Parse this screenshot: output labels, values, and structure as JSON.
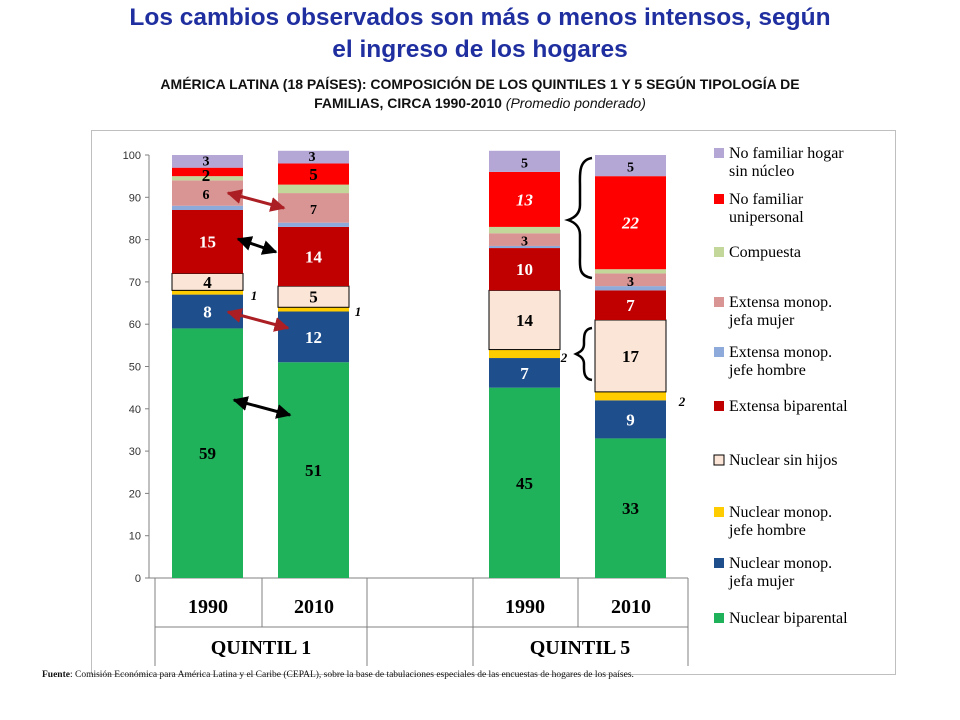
{
  "title_line1": "Los cambios observados son más o menos intensos, según",
  "title_line2": "el ingreso de los hogares",
  "subtitle_line1": "AMÉRICA LATINA (18 PAÍSES): COMPOSICIÓN DE LOS QUINTILES 1 Y 5 SEGÚN TIPOLOGÍA DE",
  "subtitle_line2": "FAMILIAS, CIRCA 1990-2010",
  "subtitle_note": "(Promedio ponderado)",
  "source_label": "Fuente",
  "source_text": ": Comisión Económica para América Latina y el Caribe (CEPAL), sobre la base de tabulaciones especiales de las encuestas de hogares de los países.",
  "colors": {
    "nuclear_biparental": "#1fb25a",
    "nuclear_monop_jefa_mujer": "#1f4e8c",
    "nuclear_monop_jefe_hombre": "#ffcc00",
    "nuclear_sin_hijos": "#fbe5d6",
    "extensa_biparental": "#c00000",
    "extensa_monop_jefe_hombre": "#8eaadb",
    "extensa_monop_jefa_mujer": "#d99594",
    "compuesta": "#c4d79b",
    "no_familiar_unipersonal": "#ff0000",
    "no_familiar_sin_nucleo": "#b4a7d6",
    "arrow": "#ab1f24"
  },
  "chart_data": {
    "type": "bar",
    "stacked": true,
    "ylim": [
      0,
      100
    ],
    "yticks": [
      "0",
      "10",
      "20",
      "30",
      "40",
      "50",
      "60",
      "70",
      "80",
      "90",
      "100"
    ],
    "categories": [
      "1990",
      "2010",
      "1990",
      "2010"
    ],
    "groups": [
      "QUINTIL 1",
      "QUINTIL 5"
    ],
    "grid": false,
    "legend_position": "right",
    "series": [
      {
        "name": "Nuclear biparental",
        "key": "nuclear_biparental",
        "values": [
          59,
          51,
          45,
          33
        ],
        "labels": [
          "59",
          "51",
          "45",
          "33"
        ]
      },
      {
        "name": "Nuclear monop. jefa mujer",
        "key": "nuclear_monop_jefa_mujer",
        "values": [
          8,
          12,
          7,
          9
        ],
        "labels": [
          "8",
          "12",
          "7",
          "9"
        ]
      },
      {
        "name": "Nuclear monop. jefe hombre",
        "key": "nuclear_monop_jefe_hombre",
        "values": [
          1,
          1,
          2,
          2
        ],
        "labels": [
          "1",
          "1",
          "2",
          "2"
        ]
      },
      {
        "name": "Nuclear sin hijos",
        "key": "nuclear_sin_hijos",
        "values": [
          4,
          5,
          14,
          17
        ],
        "labels": [
          "4",
          "5",
          "14",
          "17"
        ]
      },
      {
        "name": "Extensa biparental",
        "key": "extensa_biparental",
        "values": [
          15,
          14,
          10,
          7
        ],
        "labels": [
          "15",
          "14",
          "10",
          "7"
        ]
      },
      {
        "name": "Extensa monop. jefe hombre",
        "key": "extensa_monop_jefe_hombre",
        "values": [
          1,
          1,
          0.5,
          1
        ],
        "labels": [
          "",
          "",
          "",
          ""
        ]
      },
      {
        "name": "Extensa monop. jefa mujer",
        "key": "extensa_monop_jefa_mujer",
        "values": [
          6,
          7,
          3,
          3
        ],
        "labels": [
          "6",
          "7",
          "3",
          "3"
        ]
      },
      {
        "name": "Compuesta",
        "key": "compuesta",
        "values": [
          1,
          2,
          1.5,
          1
        ],
        "labels": [
          "",
          "",
          "",
          ""
        ]
      },
      {
        "name": "No familiar unipersonal",
        "key": "no_familiar_unipersonal",
        "values": [
          2,
          5,
          13,
          22
        ],
        "labels": [
          "2",
          "5",
          "13",
          "22"
        ]
      },
      {
        "name": "No familiar hogar sin núcleo",
        "key": "no_familiar_sin_nucleo",
        "values": [
          3,
          3,
          5,
          5
        ],
        "labels": [
          "3",
          "3",
          "5",
          "5"
        ]
      }
    ],
    "legend": [
      {
        "key": "no_familiar_sin_nucleo",
        "line1": "No familiar hogar",
        "line2": "sin núcleo"
      },
      {
        "key": "no_familiar_unipersonal",
        "line1": "No familiar",
        "line2": "unipersonal"
      },
      {
        "key": "compuesta",
        "line1": "Compuesta",
        "line2": ""
      },
      {
        "key": "extensa_monop_jefa_mujer",
        "line1": "Extensa monop.",
        "line2": "jefa mujer"
      },
      {
        "key": "extensa_monop_jefe_hombre",
        "line1": "Extensa monop.",
        "line2": "jefe hombre"
      },
      {
        "key": "extensa_biparental",
        "line1": "Extensa biparental",
        "line2": ""
      },
      {
        "key": "nuclear_sin_hijos",
        "line1": "Nuclear sin hijos",
        "line2": ""
      },
      {
        "key": "nuclear_monop_jefe_hombre",
        "line1": "Nuclear monop.",
        "line2": "jefe hombre"
      },
      {
        "key": "nuclear_monop_jefa_mujer",
        "line1": "Nuclear monop.",
        "line2": "jefa mujer"
      },
      {
        "key": "nuclear_biparental",
        "line1": "Nuclear biparental",
        "line2": ""
      }
    ]
  }
}
